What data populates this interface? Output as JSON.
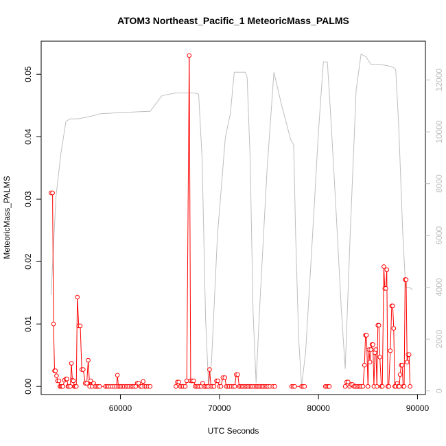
{
  "chart_data": {
    "type": "scatter",
    "title": "ATOM3 Northeast_Pacific_1 MeteoricMass_PALMS",
    "xlabel": "UTC Seconds",
    "ylabel": "MeteoricMass_PALMS",
    "xlim": [
      52000,
      90800
    ],
    "ylim": [
      -0.0013,
      0.0553
    ],
    "y2lim": [
      -140,
      13500
    ],
    "x_ticks": [
      60000,
      70000,
      80000,
      90000
    ],
    "x_tick_labels": [
      "60000",
      "70000",
      "80000",
      "90000"
    ],
    "y_ticks": [
      0.0,
      0.01,
      0.02,
      0.03,
      0.04,
      0.05
    ],
    "y_tick_labels": [
      "0.00",
      "0.01",
      "0.02",
      "0.03",
      "0.04",
      "0.05"
    ],
    "y2_ticks": [
      0,
      2000,
      4000,
      6000,
      8000,
      10000,
      12000
    ],
    "y2_tick_labels": [
      "0",
      "2000",
      "4000",
      "6000",
      "8000",
      "10000",
      "12000"
    ],
    "grid": false,
    "colors": {
      "series": "#ff0000",
      "altitude": "#bebebe",
      "axis": "#000000"
    },
    "series": [
      {
        "values_role": "MeteoricMass_PALMS (left axis)",
        "points": [
          [
            53000,
            0.031
          ],
          [
            53150,
            0.031
          ],
          [
            53250,
            0.01
          ],
          [
            53350,
            0.0025
          ],
          [
            53450,
            0.0025
          ],
          [
            53550,
            0.0017
          ],
          [
            53650,
            0.0009
          ],
          [
            53800,
            0.0009
          ],
          [
            53900,
            0.0
          ],
          [
            54000,
            0.0
          ],
          [
            54100,
            0.0
          ],
          [
            54200,
            0.0
          ],
          [
            54350,
            0.001
          ],
          [
            54500,
            0.0012
          ],
          [
            54600,
            0.0012
          ],
          [
            54700,
            0.0
          ],
          [
            54800,
            0.0
          ],
          [
            54950,
            0.0
          ],
          [
            55050,
            0.0037
          ],
          [
            55150,
            0.001
          ],
          [
            55250,
            0.0009
          ],
          [
            55350,
            0.0
          ],
          [
            55450,
            0.0
          ],
          [
            55550,
            0.0
          ],
          [
            55650,
            0.0143
          ],
          [
            55800,
            0.0097
          ],
          [
            55950,
            0.0097
          ],
          [
            56100,
            0.0027
          ],
          [
            56250,
            0.0027
          ],
          [
            56450,
            0.0005
          ],
          [
            56600,
            0.0005
          ],
          [
            56750,
            0.0042
          ],
          [
            56900,
            0.0
          ],
          [
            57000,
            0.0009
          ],
          [
            57150,
            0.0
          ],
          [
            57300,
            0.0005
          ],
          [
            57450,
            0.0
          ],
          [
            57600,
            0.0
          ],
          [
            57750,
            0.0
          ],
          [
            57900,
            0.0
          ],
          [
            58500,
            0.0
          ],
          [
            58650,
            0.0
          ],
          [
            58800,
            0.0
          ],
          [
            59000,
            0.0
          ],
          [
            59200,
            0.0
          ],
          [
            59400,
            0.0
          ],
          [
            59600,
            0.0
          ],
          [
            59700,
            0.0018
          ],
          [
            59800,
            0.0
          ],
          [
            59950,
            0.0
          ],
          [
            60100,
            0.0
          ],
          [
            60250,
            0.0
          ],
          [
            60400,
            0.0
          ],
          [
            60600,
            0.0
          ],
          [
            60750,
            0.0
          ],
          [
            60900,
            0.0
          ],
          [
            61100,
            0.0
          ],
          [
            61250,
            0.0
          ],
          [
            61400,
            0.0
          ],
          [
            61550,
            0.0
          ],
          [
            61700,
            0.0005
          ],
          [
            61850,
            0.0005
          ],
          [
            62000,
            0.0
          ],
          [
            62150,
            0.0
          ],
          [
            62300,
            0.0008
          ],
          [
            62450,
            0.0
          ],
          [
            62600,
            0.0
          ],
          [
            62800,
            0.0
          ],
          [
            63000,
            0.0
          ],
          [
            65600,
            0.0
          ],
          [
            65750,
            0.0007
          ],
          [
            65900,
            0.0007
          ],
          [
            66050,
            0.0
          ],
          [
            66200,
            0.0
          ],
          [
            66350,
            0.0
          ],
          [
            66550,
            0.0
          ],
          [
            66700,
            0.0009
          ],
          [
            66950,
            0.053
          ],
          [
            67100,
            0.0009
          ],
          [
            67250,
            0.0009
          ],
          [
            67400,
            0.0009
          ],
          [
            67550,
            0.0
          ],
          [
            67700,
            0.0
          ],
          [
            67850,
            0.0
          ],
          [
            68000,
            0.0
          ],
          [
            68150,
            0.0
          ],
          [
            68300,
            0.0005
          ],
          [
            68450,
            0.0
          ],
          [
            68600,
            0.0
          ],
          [
            68750,
            0.0
          ],
          [
            68900,
            0.0
          ],
          [
            69000,
            0.0027
          ],
          [
            69150,
            0.0
          ],
          [
            69300,
            0.0
          ],
          [
            69450,
            0.0
          ],
          [
            69700,
            0.0009
          ],
          [
            69850,
            0.0009
          ],
          [
            70000,
            0.0
          ],
          [
            70150,
            0.0
          ],
          [
            70350,
            0.0014
          ],
          [
            70550,
            0.0014
          ],
          [
            70700,
            0.0
          ],
          [
            70850,
            0.0
          ],
          [
            71000,
            0.0
          ],
          [
            71200,
            0.0
          ],
          [
            71400,
            0.0
          ],
          [
            71550,
            0.0
          ],
          [
            71700,
            0.0019
          ],
          [
            71850,
            0.0019
          ],
          [
            72000,
            0.0
          ],
          [
            72150,
            0.0
          ],
          [
            72300,
            0.0
          ],
          [
            72450,
            0.0
          ],
          [
            72600,
            0.0
          ],
          [
            72750,
            0.0
          ],
          [
            72900,
            0.0
          ],
          [
            73050,
            0.0
          ],
          [
            73200,
            0.0
          ],
          [
            73350,
            0.0
          ],
          [
            73550,
            0.0
          ],
          [
            73700,
            0.0
          ],
          [
            73850,
            0.0
          ],
          [
            74000,
            0.0
          ],
          [
            74150,
            0.0
          ],
          [
            74300,
            0.0
          ],
          [
            74450,
            0.0
          ],
          [
            74600,
            0.0
          ],
          [
            74750,
            0.0
          ],
          [
            74900,
            0.0
          ],
          [
            75100,
            0.0
          ],
          [
            75400,
            0.0
          ],
          [
            75600,
            0.0
          ],
          [
            77300,
            0.0
          ],
          [
            77450,
            0.0
          ],
          [
            77600,
            0.0
          ],
          [
            78300,
            0.0
          ],
          [
            78450,
            0.0
          ],
          [
            78600,
            0.0
          ],
          [
            80700,
            0.0
          ],
          [
            80850,
            0.0
          ],
          [
            81000,
            0.0
          ],
          [
            81100,
            0.0
          ],
          [
            82700,
            0.0
          ],
          [
            82850,
            0.0007
          ],
          [
            83000,
            0.0007
          ],
          [
            83150,
            0.0
          ],
          [
            83300,
            0.0003
          ],
          [
            83450,
            0.0003
          ],
          [
            83600,
            0.0
          ],
          [
            83750,
            0.0
          ],
          [
            83900,
            0.0
          ],
          [
            84050,
            0.0
          ],
          [
            84200,
            0.0
          ],
          [
            84350,
            0.0
          ],
          [
            84500,
            0.0
          ],
          [
            84650,
            0.0034
          ],
          [
            84750,
            0.0082
          ],
          [
            84850,
            0.0082
          ],
          [
            85000,
            0.0
          ],
          [
            85100,
            0.0059
          ],
          [
            85200,
            0.0039
          ],
          [
            85300,
            0.0059
          ],
          [
            85400,
            0.0067
          ],
          [
            85500,
            0.0067
          ],
          [
            85600,
            0.0
          ],
          [
            85700,
            0.0054
          ],
          [
            85800,
            0.0059
          ],
          [
            85900,
            0.0
          ],
          [
            86000,
            0.0098
          ],
          [
            86100,
            0.0098
          ],
          [
            86200,
            0.0047
          ],
          [
            86350,
            0.0
          ],
          [
            86450,
            0.0
          ],
          [
            86600,
            0.0192
          ],
          [
            86700,
            0.0157
          ],
          [
            86800,
            0.0157
          ],
          [
            86900,
            0.0187
          ],
          [
            87000,
            0.0
          ],
          [
            87100,
            0.0
          ],
          [
            87250,
            0.0057
          ],
          [
            87400,
            0.0129
          ],
          [
            87500,
            0.0129
          ],
          [
            87600,
            0.0093
          ],
          [
            87700,
            0.0
          ],
          [
            87800,
            0.0
          ],
          [
            87950,
            0.0005
          ],
          [
            88050,
            0.0
          ],
          [
            88150,
            0.0
          ],
          [
            88250,
            0.0019
          ],
          [
            88350,
            0.0034
          ],
          [
            88450,
            0.0034
          ],
          [
            88550,
            0.0
          ],
          [
            88650,
            0.0
          ],
          [
            88750,
            0.0171
          ],
          [
            88850,
            0.0171
          ],
          [
            88950,
            0.0039
          ],
          [
            89050,
            0.0051
          ],
          [
            89150,
            0.0051
          ],
          [
            89250,
            0.0
          ]
        ]
      },
      {
        "values_role": "altitude (right axis)",
        "points": [
          [
            53000,
            3700
          ],
          [
            53500,
            7500
          ],
          [
            54000,
            9200
          ],
          [
            54500,
            10400
          ],
          [
            54900,
            10500
          ],
          [
            55700,
            10500
          ],
          [
            57000,
            10600
          ],
          [
            58000,
            10700
          ],
          [
            59000,
            10720
          ],
          [
            60000,
            10750
          ],
          [
            61000,
            10760
          ],
          [
            62000,
            10780
          ],
          [
            63000,
            10790
          ],
          [
            64200,
            11400
          ],
          [
            65600,
            11500
          ],
          [
            67500,
            11500
          ],
          [
            67900,
            11450
          ],
          [
            68250,
            9000
          ],
          [
            68600,
            2800
          ],
          [
            68900,
            200
          ],
          [
            69200,
            1100
          ],
          [
            69800,
            6000
          ],
          [
            70600,
            9800
          ],
          [
            71100,
            10700
          ],
          [
            71500,
            12300
          ],
          [
            72000,
            12300
          ],
          [
            72600,
            12300
          ],
          [
            72800,
            12100
          ],
          [
            73100,
            9000
          ],
          [
            73400,
            3000
          ],
          [
            73700,
            300
          ],
          [
            74100,
            3500
          ],
          [
            74800,
            8500
          ],
          [
            75500,
            12300
          ],
          [
            76300,
            11000
          ],
          [
            77200,
            9700
          ],
          [
            77500,
            9500
          ],
          [
            77700,
            6000
          ],
          [
            78000,
            2000
          ],
          [
            78300,
            200
          ],
          [
            78700,
            1500
          ],
          [
            79400,
            6000
          ],
          [
            80000,
            10000
          ],
          [
            80500,
            12700
          ],
          [
            80900,
            12700
          ],
          [
            81300,
            10200
          ],
          [
            81800,
            6800
          ],
          [
            82300,
            3200
          ],
          [
            82700,
            850
          ],
          [
            83200,
            6000
          ],
          [
            83800,
            11600
          ],
          [
            84300,
            13000
          ],
          [
            84800,
            12900
          ],
          [
            85300,
            12600
          ],
          [
            86000,
            12600
          ],
          [
            86600,
            12580
          ],
          [
            87000,
            12550
          ],
          [
            87500,
            12500
          ],
          [
            87800,
            12400
          ],
          [
            88100,
            10300
          ],
          [
            88500,
            6200
          ],
          [
            88800,
            4000
          ],
          [
            89200,
            4000
          ],
          [
            89500,
            3900
          ]
        ]
      }
    ]
  }
}
